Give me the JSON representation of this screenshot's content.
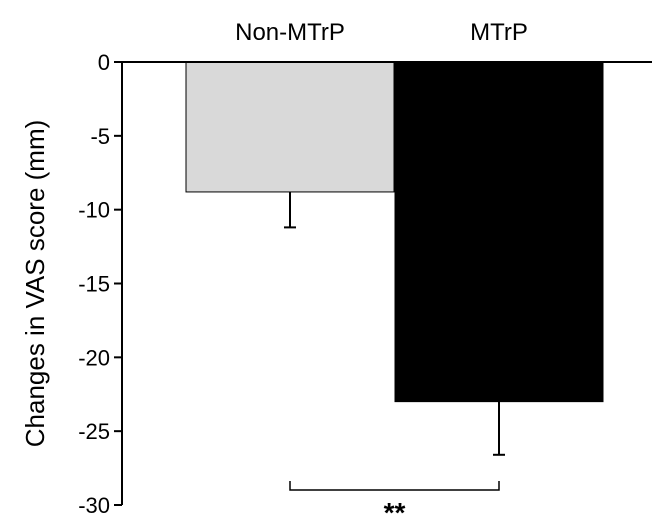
{
  "chart_data": {
    "type": "bar",
    "categories": [
      "Non-MTrP",
      "MTrP"
    ],
    "values": [
      -8.8,
      -23.0
    ],
    "errors": [
      2.4,
      3.6
    ],
    "colors": [
      "#d9d9d9",
      "#000000"
    ],
    "title": "",
    "xlabel": "",
    "ylabel": "Changes in VAS score (mm)",
    "ylim": [
      -30,
      0
    ],
    "yticks": [
      0,
      -5,
      -10,
      -15,
      -20,
      -25,
      -30
    ],
    "ytick_labels": [
      "0",
      "-5",
      "-10",
      "-15",
      "-20",
      "-25",
      "-30"
    ],
    "grid": false,
    "category_label_position": "top",
    "annotation": "**"
  }
}
